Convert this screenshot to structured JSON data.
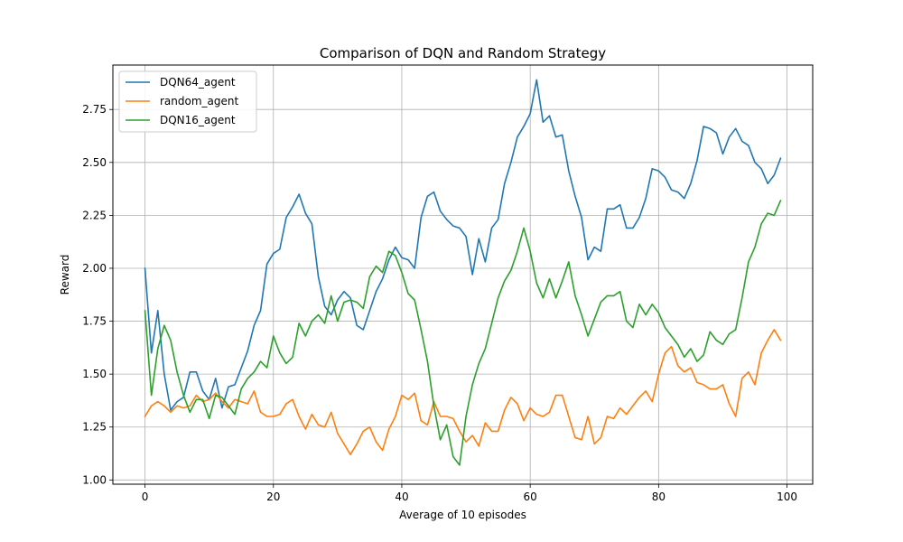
{
  "chart_data": {
    "type": "line",
    "title": "Comparison of DQN and Random Strategy",
    "xlabel": "Average of 10 episodes",
    "ylabel": "Reward",
    "xlim": [
      -5,
      104
    ],
    "ylim": [
      0.98,
      2.96
    ],
    "xticks": [
      0,
      20,
      40,
      60,
      80,
      100
    ],
    "yticks": [
      1.0,
      1.25,
      1.5,
      1.75,
      2.0,
      2.25,
      2.5,
      2.75
    ],
    "ytick_labels": [
      "1.00",
      "1.25",
      "1.50",
      "1.75",
      "2.00",
      "2.25",
      "2.50",
      "2.75"
    ],
    "grid": true,
    "legend_position": "top-left",
    "series": [
      {
        "name": "DQN64_agent",
        "color": "#1f77b4",
        "values": [
          2.0,
          1.6,
          1.8,
          1.5,
          1.33,
          1.37,
          1.39,
          1.51,
          1.51,
          1.42,
          1.38,
          1.48,
          1.34,
          1.44,
          1.45,
          1.53,
          1.61,
          1.73,
          1.8,
          2.02,
          2.07,
          2.09,
          2.24,
          2.29,
          2.35,
          2.26,
          2.21,
          1.96,
          1.82,
          1.78,
          1.85,
          1.89,
          1.86,
          1.73,
          1.71,
          1.8,
          1.89,
          1.95,
          2.04,
          2.1,
          2.05,
          2.04,
          2.0,
          2.24,
          2.34,
          2.36,
          2.27,
          2.23,
          2.2,
          2.19,
          2.15,
          1.97,
          2.14,
          2.03,
          2.19,
          2.23,
          2.4,
          2.5,
          2.62,
          2.67,
          2.73,
          2.89,
          2.69,
          2.72,
          2.62,
          2.63,
          2.46,
          2.34,
          2.24,
          2.04,
          2.1,
          2.08,
          2.28,
          2.28,
          2.3,
          2.19,
          2.19,
          2.24,
          2.33,
          2.47,
          2.46,
          2.43,
          2.37,
          2.36,
          2.33,
          2.4,
          2.51,
          2.67,
          2.66,
          2.64,
          2.54,
          2.62,
          2.66,
          2.6,
          2.58,
          2.5,
          2.47,
          2.4,
          2.44,
          2.52
        ]
      },
      {
        "name": "random_agent",
        "color": "#ff7f0e",
        "values": [
          1.3,
          1.35,
          1.37,
          1.35,
          1.32,
          1.35,
          1.34,
          1.35,
          1.4,
          1.37,
          1.38,
          1.41,
          1.37,
          1.34,
          1.38,
          1.37,
          1.36,
          1.42,
          1.32,
          1.3,
          1.3,
          1.31,
          1.36,
          1.38,
          1.3,
          1.24,
          1.31,
          1.26,
          1.25,
          1.32,
          1.22,
          1.17,
          1.12,
          1.17,
          1.23,
          1.25,
          1.18,
          1.14,
          1.24,
          1.3,
          1.4,
          1.38,
          1.41,
          1.28,
          1.26,
          1.37,
          1.3,
          1.3,
          1.29,
          1.23,
          1.18,
          1.21,
          1.16,
          1.27,
          1.23,
          1.23,
          1.33,
          1.39,
          1.36,
          1.28,
          1.34,
          1.31,
          1.3,
          1.32,
          1.4,
          1.4,
          1.3,
          1.2,
          1.19,
          1.3,
          1.17,
          1.2,
          1.3,
          1.29,
          1.34,
          1.31,
          1.35,
          1.39,
          1.42,
          1.37,
          1.5,
          1.6,
          1.63,
          1.54,
          1.51,
          1.53,
          1.46,
          1.45,
          1.43,
          1.43,
          1.45,
          1.36,
          1.3,
          1.48,
          1.51,
          1.45,
          1.6,
          1.66,
          1.71,
          1.66
        ]
      },
      {
        "name": "DQN16_agent",
        "color": "#2ca02c",
        "values": [
          1.8,
          1.4,
          1.62,
          1.73,
          1.66,
          1.51,
          1.4,
          1.32,
          1.38,
          1.38,
          1.29,
          1.4,
          1.39,
          1.35,
          1.31,
          1.43,
          1.48,
          1.51,
          1.56,
          1.53,
          1.68,
          1.6,
          1.55,
          1.58,
          1.74,
          1.68,
          1.75,
          1.78,
          1.74,
          1.87,
          1.75,
          1.84,
          1.85,
          1.84,
          1.81,
          1.96,
          2.01,
          1.98,
          2.08,
          2.06,
          1.98,
          1.88,
          1.85,
          1.71,
          1.56,
          1.35,
          1.19,
          1.26,
          1.11,
          1.07,
          1.3,
          1.45,
          1.55,
          1.62,
          1.74,
          1.86,
          1.94,
          1.99,
          2.08,
          2.19,
          2.08,
          1.93,
          1.86,
          1.95,
          1.86,
          1.94,
          2.03,
          1.87,
          1.78,
          1.68,
          1.76,
          1.84,
          1.87,
          1.87,
          1.89,
          1.75,
          1.72,
          1.83,
          1.78,
          1.83,
          1.79,
          1.72,
          1.68,
          1.64,
          1.58,
          1.62,
          1.56,
          1.59,
          1.7,
          1.66,
          1.64,
          1.69,
          1.71,
          1.86,
          2.03,
          2.1,
          2.21,
          2.26,
          2.25,
          2.32
        ]
      }
    ]
  }
}
